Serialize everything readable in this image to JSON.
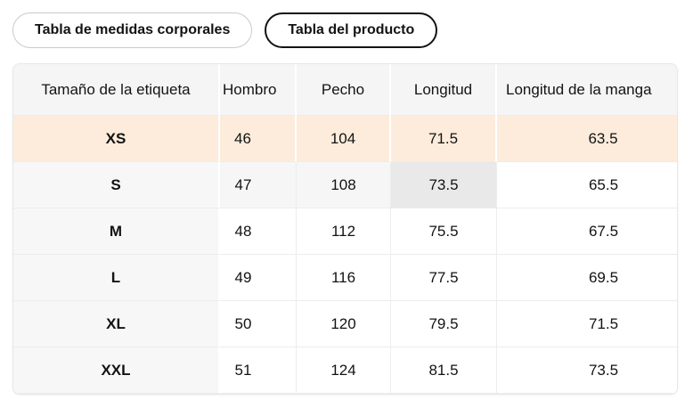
{
  "tabs": [
    {
      "label": "Tabla de medidas corporales",
      "selected": false
    },
    {
      "label": "Tabla del producto",
      "selected": true
    }
  ],
  "table": {
    "columns": [
      "Tamaño de la etiqueta",
      "Hombro",
      "Pecho",
      "Longitud",
      "Longitud de la manga"
    ],
    "rows": [
      {
        "size": "XS",
        "hombro": "46",
        "pecho": "104",
        "longitud": "71.5",
        "manga": "63.5"
      },
      {
        "size": "S",
        "hombro": "47",
        "pecho": "108",
        "longitud": "73.5",
        "manga": "65.5"
      },
      {
        "size": "M",
        "hombro": "48",
        "pecho": "112",
        "longitud": "75.5",
        "manga": "67.5"
      },
      {
        "size": "L",
        "hombro": "49",
        "pecho": "116",
        "longitud": "77.5",
        "manga": "69.5"
      },
      {
        "size": "XL",
        "hombro": "50",
        "pecho": "120",
        "longitud": "79.5",
        "manga": "71.5"
      },
      {
        "size": "XXL",
        "hombro": "51",
        "pecho": "124",
        "longitud": "81.5",
        "manga": "73.5"
      }
    ],
    "highlight": {
      "highlighted_row": "XS",
      "hovered_row": "S",
      "hovered_column": "Longitud",
      "hovered_cell_value": "73.5"
    },
    "colors": {
      "row_highlight": "#fdecdb",
      "hovered_cell": "#e9e9ea",
      "hovered_row_trail": "#f6f6f7",
      "header_bg": "#f5f5f6",
      "first_column_bg": "#f7f7f8",
      "selected_tab_border": "#131313"
    }
  }
}
